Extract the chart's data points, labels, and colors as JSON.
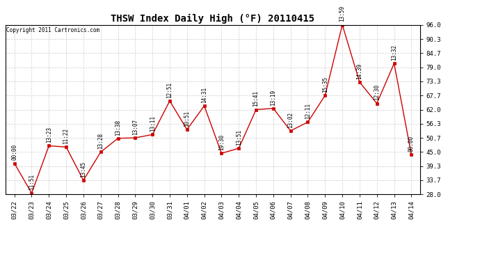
{
  "title": "THSW Index Daily High (°F) 20110415",
  "copyright": "Copyright 2011 Cartronics.com",
  "x_labels": [
    "03/22",
    "03/23",
    "03/24",
    "03/25",
    "03/26",
    "03/27",
    "03/28",
    "03/29",
    "03/30",
    "03/31",
    "04/01",
    "04/02",
    "04/03",
    "04/04",
    "04/05",
    "04/06",
    "04/07",
    "04/08",
    "04/09",
    "04/10",
    "04/11",
    "04/12",
    "04/13",
    "04/14"
  ],
  "y_values": [
    40.5,
    28.5,
    47.5,
    47.0,
    33.7,
    45.0,
    50.5,
    50.7,
    52.0,
    65.5,
    54.0,
    63.5,
    44.5,
    46.5,
    62.0,
    62.5,
    53.5,
    57.0,
    67.7,
    96.0,
    73.0,
    64.5,
    80.5,
    44.0
  ],
  "time_labels": [
    "00:00",
    "11:51",
    "13:23",
    "11:22",
    "13:45",
    "13:28",
    "13:38",
    "13:07",
    "13:11",
    "12:51",
    "10:51",
    "14:31",
    "19:30",
    "13:51",
    "15:41",
    "13:19",
    "13:02",
    "12:11",
    "15:35",
    "13:59",
    "14:39",
    "12:30",
    "13:32",
    "00:00"
  ],
  "y_ticks": [
    28.0,
    33.7,
    39.3,
    45.0,
    50.7,
    56.3,
    62.0,
    67.7,
    73.3,
    79.0,
    84.7,
    90.3,
    96.0
  ],
  "line_color": "#cc0000",
  "marker_color": "#cc0000",
  "bg_color": "#ffffff",
  "grid_color": "#cccccc",
  "title_fontsize": 10,
  "tick_fontsize": 6.5,
  "label_fontsize": 5.5,
  "copyright_fontsize": 5.5
}
